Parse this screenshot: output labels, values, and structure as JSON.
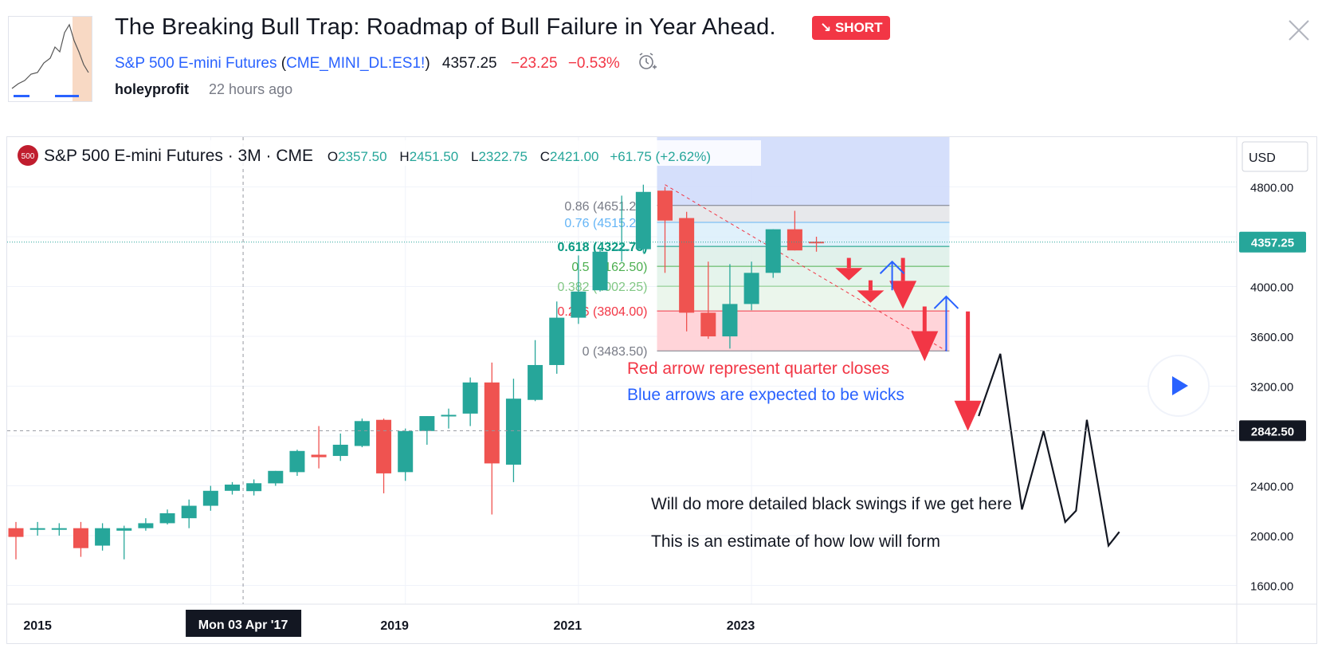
{
  "header": {
    "title": "The Breaking Bull Trap: Roadmap of Bull Failure in Year Ahead.",
    "badge": "↘ SHORT",
    "symbol_name": "S&P 500 E-mini Futures",
    "ticker": "CME_MINI_DL:ES1!",
    "price": "4357.25",
    "change": "−23.25",
    "change_pct": "−0.53%",
    "author": "holeyprofit",
    "time_ago": "22 hours ago"
  },
  "colors": {
    "up": "#26a69a",
    "down": "#ef5350",
    "link": "#2962ff",
    "badge": "#f23645",
    "annotation_red": "#f23645",
    "annotation_blue": "#2962ff"
  },
  "legend": {
    "symbol_icon": "500",
    "title": "S&P 500 E-mini Futures · 3M · CME",
    "o_label": "O",
    "o_value": "2357.50",
    "h_label": "H",
    "h_value": "2451.50",
    "l_label": "L",
    "l_value": "2322.75",
    "c_label": "C",
    "c_value": "2421.00",
    "change": "+61.75 (+2.62%)"
  },
  "axis": {
    "currency": "USD",
    "crosshair_date": "Mon 03 Apr '17"
  },
  "annotations": {
    "red_text": "Red arrow represent quarter closes",
    "blue_text": "Blue arrows are expected to be wicks",
    "black_text_1": "Will do more detailed black swings if we get here",
    "black_text_2": "This is an estimate of how low will form"
  },
  "chart_data": {
    "type": "candlestick",
    "title": "S&P 500 E-mini Futures · 3M · CME",
    "xlabel": "",
    "ylabel": "",
    "x_ticks": [
      "2015",
      "2019",
      "2021",
      "2023"
    ],
    "y_ticks": [
      4800,
      4400,
      4000,
      3600,
      3200,
      2800,
      2400,
      2000,
      1600
    ],
    "y_tick_labels": [
      "4800.00",
      "",
      "4000.00",
      "3600.00",
      "3200.00",
      "",
      "2400.00",
      "2000.00",
      "1600.00"
    ],
    "ylim": [
      1450,
      5200
    ],
    "price_tags": [
      {
        "value": 4357.25,
        "label": "4357.25",
        "kind": "last"
      },
      {
        "value": 2842.5,
        "label": "2842.50",
        "kind": "crosshair"
      }
    ],
    "candles": [
      {
        "o": 2060,
        "h": 2110,
        "l": 1810,
        "c": 1990
      },
      {
        "o": 2060,
        "h": 2110,
        "l": 2000,
        "c": 2060
      },
      {
        "o": 2060,
        "h": 2100,
        "l": 2000,
        "c": 2060
      },
      {
        "o": 2060,
        "h": 2110,
        "l": 1830,
        "c": 1900
      },
      {
        "o": 1920,
        "h": 2100,
        "l": 1880,
        "c": 2060
      },
      {
        "o": 2040,
        "h": 2080,
        "l": 1810,
        "c": 2060
      },
      {
        "o": 2060,
        "h": 2140,
        "l": 2040,
        "c": 2100
      },
      {
        "o": 2100,
        "h": 2210,
        "l": 2090,
        "c": 2180
      },
      {
        "o": 2140,
        "h": 2290,
        "l": 2060,
        "c": 2240
      },
      {
        "o": 2240,
        "h": 2400,
        "l": 2200,
        "c": 2360
      },
      {
        "o": 2360,
        "h": 2430,
        "l": 2330,
        "c": 2410
      },
      {
        "o": 2357.5,
        "h": 2451.5,
        "l": 2322.75,
        "c": 2421
      },
      {
        "o": 2420,
        "h": 2520,
        "l": 2400,
        "c": 2520
      },
      {
        "o": 2510,
        "h": 2690,
        "l": 2480,
        "c": 2680
      },
      {
        "o": 2650,
        "h": 2880,
        "l": 2540,
        "c": 2630
      },
      {
        "o": 2640,
        "h": 2820,
        "l": 2600,
        "c": 2730
      },
      {
        "o": 2720,
        "h": 2940,
        "l": 2710,
        "c": 2920
      },
      {
        "o": 2930,
        "h": 2940,
        "l": 2340,
        "c": 2500
      },
      {
        "o": 2510,
        "h": 2860,
        "l": 2440,
        "c": 2840
      },
      {
        "o": 2840,
        "h": 2960,
        "l": 2730,
        "c": 2960
      },
      {
        "o": 2970,
        "h": 3020,
        "l": 2860,
        "c": 2970
      },
      {
        "o": 2980,
        "h": 3270,
        "l": 2880,
        "c": 3230
      },
      {
        "o": 3230,
        "h": 3390,
        "l": 2170,
        "c": 2580
      },
      {
        "o": 2570,
        "h": 3260,
        "l": 2430,
        "c": 3100
      },
      {
        "o": 3090,
        "h": 3570,
        "l": 3080,
        "c": 3370
      },
      {
        "o": 3370,
        "h": 3880,
        "l": 3300,
        "c": 3750
      },
      {
        "o": 3750,
        "h": 4250,
        "l": 3700,
        "c": 3960
      },
      {
        "o": 3970,
        "h": 4300,
        "l": 3960,
        "c": 4280
      },
      {
        "o": 4290,
        "h": 4730,
        "l": 4200,
        "c": 4300
      },
      {
        "o": 4300,
        "h": 4818,
        "l": 4270,
        "c": 4760
      },
      {
        "o": 4770,
        "h": 4800,
        "l": 4110,
        "c": 4530
      },
      {
        "o": 4550,
        "h": 4600,
        "l": 3640,
        "c": 3790
      },
      {
        "o": 3790,
        "h": 4200,
        "l": 3580,
        "c": 3600
      },
      {
        "o": 3600,
        "h": 4180,
        "l": 3502,
        "c": 3860
      },
      {
        "o": 3860,
        "h": 4200,
        "l": 3810,
        "c": 4110
      },
      {
        "o": 4110,
        "h": 4460,
        "l": 4070,
        "c": 4460
      },
      {
        "o": 4460,
        "h": 4608,
        "l": 4290,
        "c": 4290
      },
      {
        "o": 4360,
        "h": 4400,
        "l": 4280,
        "c": 4357.25
      }
    ],
    "fib_retracement": {
      "levels": [
        {
          "ratio": 0,
          "price": 3483.5,
          "label": "0 (3483.50)",
          "color": "#787b86"
        },
        {
          "ratio": 0.236,
          "price": 3804.0,
          "label": "0.236 (3804.00)",
          "color": "#f23645"
        },
        {
          "ratio": 0.382,
          "price": 4002.25,
          "label": "0.382 (4002.25)",
          "color": "#81c784"
        },
        {
          "ratio": 0.5,
          "price": 4162.5,
          "label": "0.5 (4162.50)",
          "color": "#4caf50"
        },
        {
          "ratio": 0.618,
          "price": 4322.75,
          "label": "0.618 (4322.75)",
          "color": "#089981"
        },
        {
          "ratio": 0.76,
          "price": 4515.25,
          "label": "0.76 (4515.25)",
          "color": "#64b5f6"
        },
        {
          "ratio": 0.86,
          "price": 4651.25,
          "label": "0.86 (4651.25)",
          "color": "#787b86"
        }
      ],
      "trend_line": {
        "from": [
          30,
          4818
        ],
        "to": [
          43,
          3483.5
        ]
      }
    },
    "red_arrows": [
      {
        "x": 38.5,
        "from": 4230,
        "to": 4050
      },
      {
        "x": 39.5,
        "from": 4050,
        "to": 3870
      },
      {
        "x": 41,
        "from": 4230,
        "to": 3820
      },
      {
        "x": 42,
        "from": 3840,
        "to": 3400
      },
      {
        "x": 44,
        "from": 3800,
        "to": 2840
      }
    ],
    "blue_arrows": [
      {
        "x": 40.5,
        "from": 3970,
        "to": 4200
      },
      {
        "x": 43,
        "from": 3480,
        "to": 3920
      }
    ],
    "black_swings": [
      [
        44.5,
        2960
      ],
      [
        45.5,
        3460
      ],
      [
        46.5,
        2210
      ],
      [
        47.5,
        2840
      ],
      [
        48.5,
        2110
      ],
      [
        49,
        2200
      ],
      [
        49.5,
        2930
      ],
      [
        50.5,
        1920
      ],
      [
        51,
        2030
      ]
    ]
  }
}
